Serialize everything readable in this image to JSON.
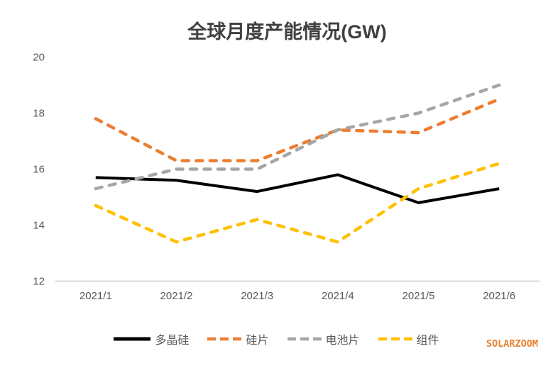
{
  "chart_data": {
    "type": "line",
    "title": "全球月度产能情况(GW)",
    "categories": [
      "2021/1",
      "2021/2",
      "2021/3",
      "2021/4",
      "2021/5",
      "2021/6"
    ],
    "series": [
      {
        "name": "多晶硅",
        "color": "#000000",
        "style": "solid",
        "values": [
          15.7,
          15.6,
          15.2,
          15.8,
          14.8,
          15.3
        ]
      },
      {
        "name": "硅片",
        "color": "#ED7D31",
        "style": "dashed",
        "values": [
          17.8,
          16.3,
          16.3,
          17.4,
          17.3,
          18.5
        ]
      },
      {
        "name": "电池片",
        "color": "#A6A6A6",
        "style": "dashed",
        "values": [
          15.3,
          16.0,
          16.0,
          17.4,
          18.0,
          19.0
        ]
      },
      {
        "name": "组件",
        "color": "#FFC000",
        "style": "dashed",
        "values": [
          14.7,
          13.4,
          14.2,
          13.4,
          15.3,
          16.2
        ]
      }
    ],
    "ylim": [
      12,
      20
    ],
    "yticks": [
      20,
      18,
      16,
      14,
      12
    ],
    "xlabel": "",
    "ylabel": "",
    "grid": false,
    "legend_position": "bottom",
    "colors": {
      "title": "#404040",
      "axis_labels": "#595959",
      "axis_line": "#D9D9D9"
    }
  },
  "watermark": {
    "text": "SOLARZOOM",
    "color": "#E8812F"
  }
}
